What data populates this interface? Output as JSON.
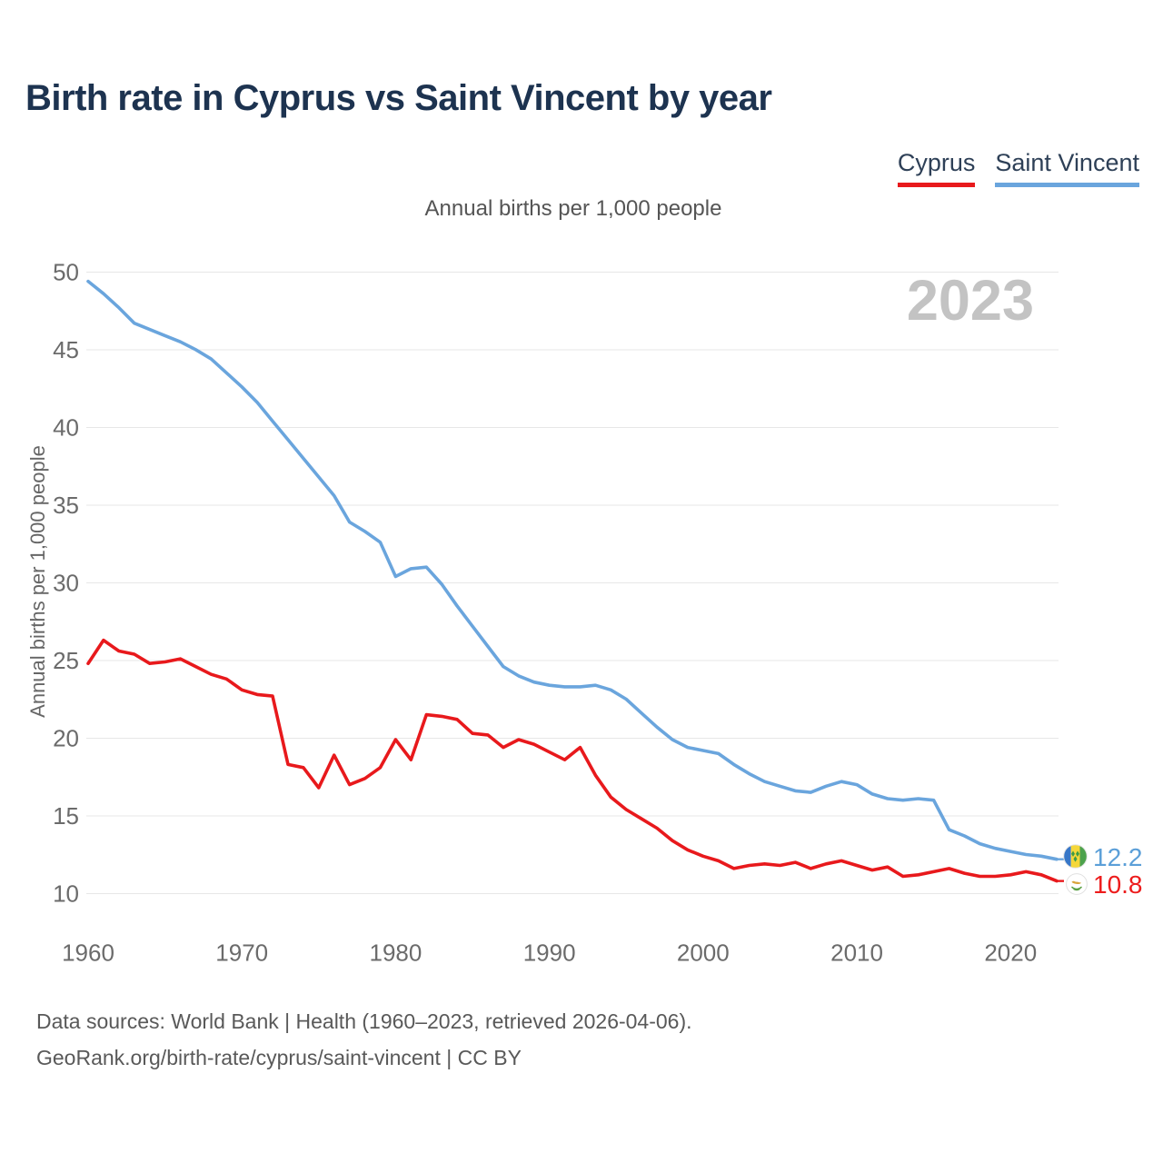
{
  "header": {
    "title": "Birth rate in Cyprus vs Saint Vincent by year"
  },
  "legend": {
    "items": [
      {
        "label": "Cyprus",
        "color": "#e8191c"
      },
      {
        "label": "Saint Vincent",
        "color": "#6aa5dd"
      }
    ]
  },
  "chart_data": {
    "type": "line",
    "title": "Birth rate in Cyprus vs Saint Vincent by year",
    "subtitle": "Annual births per 1,000 people",
    "ylabel": "Annual births per 1,000 people",
    "watermark": "2023",
    "grid": true,
    "legend_position": "top-right",
    "xlim": [
      1960,
      2023
    ],
    "ylim": [
      10,
      50
    ],
    "x_ticks": [
      1960,
      1970,
      1980,
      1990,
      2000,
      2010,
      2020
    ],
    "y_ticks": [
      10,
      15,
      20,
      25,
      30,
      35,
      40,
      45,
      50
    ],
    "x": [
      1960,
      1961,
      1962,
      1963,
      1964,
      1965,
      1966,
      1967,
      1968,
      1969,
      1970,
      1971,
      1972,
      1973,
      1974,
      1975,
      1976,
      1977,
      1978,
      1979,
      1980,
      1981,
      1982,
      1983,
      1984,
      1985,
      1986,
      1987,
      1988,
      1989,
      1990,
      1991,
      1992,
      1993,
      1994,
      1995,
      1996,
      1997,
      1998,
      1999,
      2000,
      2001,
      2002,
      2003,
      2004,
      2005,
      2006,
      2007,
      2008,
      2009,
      2010,
      2011,
      2012,
      2013,
      2014,
      2015,
      2016,
      2017,
      2018,
      2019,
      2020,
      2021,
      2022,
      2023
    ],
    "series": [
      {
        "name": "Cyprus",
        "color": "#e8191c",
        "end_label": "10.8",
        "values": [
          24.8,
          26.3,
          25.6,
          25.4,
          24.8,
          24.9,
          25.1,
          24.6,
          24.1,
          23.8,
          23.1,
          22.8,
          22.7,
          18.3,
          18.1,
          16.8,
          18.9,
          17.0,
          17.4,
          18.1,
          19.9,
          18.6,
          21.5,
          21.4,
          21.2,
          20.3,
          20.2,
          19.4,
          19.9,
          19.6,
          19.1,
          18.6,
          19.4,
          17.6,
          16.2,
          15.4,
          14.8,
          14.2,
          13.4,
          12.8,
          12.4,
          12.1,
          11.6,
          11.8,
          11.9,
          11.8,
          12.0,
          11.6,
          11.9,
          12.1,
          11.8,
          11.5,
          11.7,
          11.1,
          11.2,
          11.4,
          11.6,
          11.3,
          11.1,
          11.1,
          11.2,
          11.4,
          11.2,
          10.8
        ]
      },
      {
        "name": "Saint Vincent",
        "color": "#6aa5dd",
        "end_label": "12.2",
        "values": [
          49.4,
          48.6,
          47.7,
          46.7,
          46.3,
          45.9,
          45.5,
          45.0,
          44.4,
          43.5,
          42.6,
          41.6,
          40.4,
          39.2,
          38.0,
          36.8,
          35.6,
          33.9,
          33.3,
          32.6,
          30.4,
          30.9,
          31.0,
          29.9,
          28.5,
          27.2,
          25.9,
          24.6,
          24.0,
          23.6,
          23.4,
          23.3,
          23.3,
          23.4,
          23.1,
          22.5,
          21.6,
          20.7,
          19.9,
          19.4,
          19.2,
          19.0,
          18.3,
          17.7,
          17.2,
          16.9,
          16.6,
          16.5,
          16.9,
          17.2,
          17.0,
          16.4,
          16.1,
          16.0,
          16.1,
          16.0,
          14.1,
          13.7,
          13.2,
          12.9,
          12.7,
          12.5,
          12.4,
          12.2
        ]
      }
    ]
  },
  "end_labels": {
    "saint_vincent": {
      "value": "12.2",
      "color": "#5b9fd8",
      "flag_icon": "saint-vincent-flag-icon"
    },
    "cyprus": {
      "value": "10.8",
      "color": "#ed1c1c",
      "flag_icon": "cyprus-flag-icon"
    }
  },
  "footer": {
    "line1": "Data sources: World Bank | Health (1960–2023, retrieved 2026-04-06).",
    "line2": "GeoRank.org/birth-rate/cyprus/saint-vincent | CC BY"
  }
}
